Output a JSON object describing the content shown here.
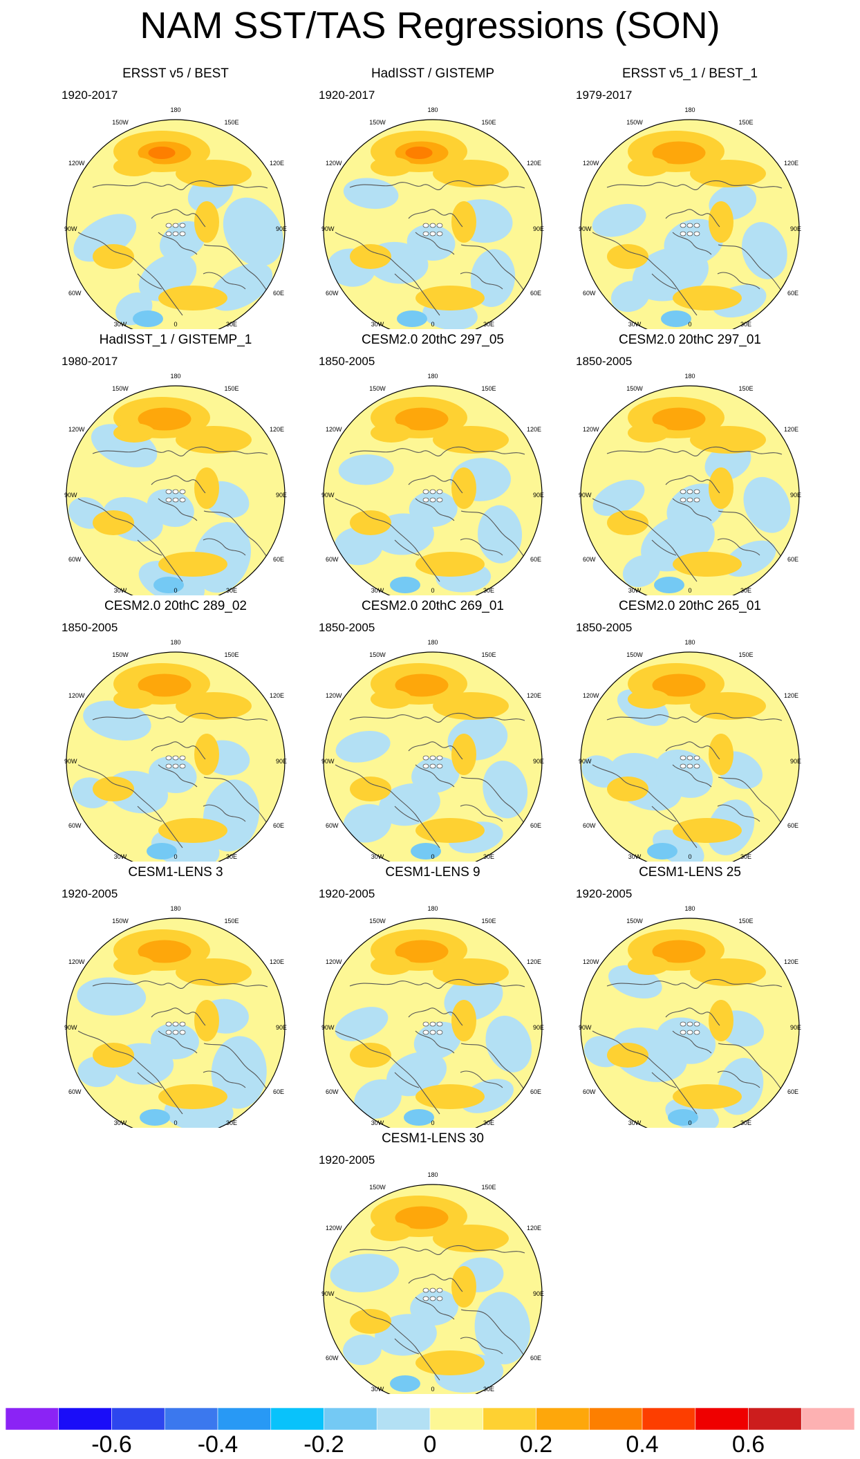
{
  "title": "NAM SST/TAS Regressions (SON)",
  "panels": [
    {
      "title": "ERSST v5 / BEST",
      "period": "1920-2017"
    },
    {
      "title": "HadISST / GISTEMP",
      "period": "1920-2017"
    },
    {
      "title": "ERSST v5_1 / BEST_1",
      "period": "1979-2017"
    },
    {
      "title": "HadISST_1 / GISTEMP_1",
      "period": "1980-2017"
    },
    {
      "title": "CESM2.0 20thC 297_05",
      "period": "1850-2005"
    },
    {
      "title": "CESM2.0 20thC 297_01",
      "period": "1850-2005"
    },
    {
      "title": "CESM2.0 20thC 289_02",
      "period": "1850-2005"
    },
    {
      "title": "CESM2.0 20thC 269_01",
      "period": "1850-2005"
    },
    {
      "title": "CESM2.0 20thC 265_01",
      "period": "1850-2005"
    },
    {
      "title": "CESM1-LENS 3",
      "period": "1920-2005"
    },
    {
      "title": "CESM1-LENS 9",
      "period": "1920-2005"
    },
    {
      "title": "CESM1-LENS 25",
      "period": "1920-2005"
    },
    {
      "title": "CESM1-LENS 30",
      "period": "1920-2005"
    }
  ],
  "longitude_labels": {
    "top": "180",
    "upper_left": "150W",
    "upper_right": "150E",
    "left_upper": "120W",
    "right_upper": "120E",
    "left": "90W",
    "right": "90E",
    "left_lower": "60W",
    "right_lower": "60E",
    "lower_left": "30W",
    "lower_right": "30E",
    "bottom": "0"
  },
  "colorbar": {
    "colors": [
      "#8b23f5",
      "#1a0df8",
      "#2d46ee",
      "#3b78ee",
      "#2899f5",
      "#09c2fb",
      "#74c9f4",
      "#b3e0f4",
      "#fdf795",
      "#fed132",
      "#fea70b",
      "#fd7f00",
      "#fd3e00",
      "#ef0000",
      "#cc1d1d",
      "#fdb1b2"
    ],
    "tick_labels": [
      "-0.6",
      "-0.4",
      "-0.2",
      "0",
      "0.2",
      "0.4",
      "0.6"
    ]
  }
}
